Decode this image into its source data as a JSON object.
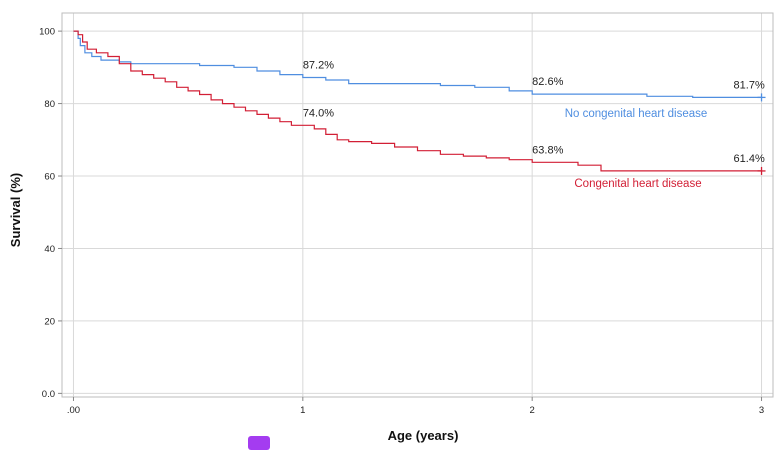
{
  "chart_data": {
    "type": "line",
    "title": "",
    "xlabel": "Age (years)",
    "ylabel": "Survival (%)",
    "xlim": [
      -0.05,
      3.05
    ],
    "ylim": [
      -1,
      105
    ],
    "x_ticks": [
      {
        "value": 0,
        "label": ".00"
      },
      {
        "value": 1,
        "label": "1"
      },
      {
        "value": 2,
        "label": "2"
      },
      {
        "value": 3,
        "label": "3"
      }
    ],
    "y_ticks": [
      {
        "value": 0,
        "label": "0.0"
      },
      {
        "value": 20,
        "label": "20"
      },
      {
        "value": 40,
        "label": "40"
      },
      {
        "value": 60,
        "label": "60"
      },
      {
        "value": 80,
        "label": "80"
      },
      {
        "value": 100,
        "label": "100"
      }
    ],
    "grid": true,
    "series": [
      {
        "name": "No congenital heart disease",
        "color": "#4f8ee0",
        "points": [
          [
            0,
            100
          ],
          [
            0.02,
            98
          ],
          [
            0.03,
            96
          ],
          [
            0.05,
            94
          ],
          [
            0.08,
            93
          ],
          [
            0.12,
            92
          ],
          [
            0.2,
            91.5
          ],
          [
            0.25,
            91
          ],
          [
            0.4,
            91
          ],
          [
            0.55,
            90.5
          ],
          [
            0.7,
            90
          ],
          [
            0.8,
            89
          ],
          [
            0.9,
            88
          ],
          [
            1.0,
            87.2
          ],
          [
            1.1,
            86.5
          ],
          [
            1.2,
            85.5
          ],
          [
            1.4,
            85.5
          ],
          [
            1.6,
            85
          ],
          [
            1.75,
            84.5
          ],
          [
            1.9,
            83.5
          ],
          [
            2.0,
            82.6
          ],
          [
            2.3,
            82.6
          ],
          [
            2.5,
            82
          ],
          [
            2.7,
            81.7
          ],
          [
            3.0,
            81.7
          ]
        ],
        "annotations": [
          {
            "x": 1,
            "y": 87.2,
            "text": "87.2%"
          },
          {
            "x": 2,
            "y": 82.6,
            "text": "82.6%"
          },
          {
            "x": 3,
            "y": 81.7,
            "text": "81.7%"
          }
        ]
      },
      {
        "name": "Congenital heart disease",
        "color": "#d21f35",
        "points": [
          [
            0,
            100
          ],
          [
            0.02,
            99
          ],
          [
            0.04,
            97
          ],
          [
            0.06,
            95
          ],
          [
            0.1,
            94
          ],
          [
            0.15,
            93
          ],
          [
            0.2,
            91
          ],
          [
            0.25,
            89
          ],
          [
            0.3,
            88
          ],
          [
            0.35,
            87
          ],
          [
            0.4,
            86
          ],
          [
            0.45,
            84.5
          ],
          [
            0.5,
            83.5
          ],
          [
            0.55,
            82.5
          ],
          [
            0.6,
            81
          ],
          [
            0.65,
            80
          ],
          [
            0.7,
            79
          ],
          [
            0.75,
            78
          ],
          [
            0.8,
            77
          ],
          [
            0.85,
            76
          ],
          [
            0.9,
            75
          ],
          [
            0.95,
            74
          ],
          [
            1.0,
            74
          ],
          [
            1.05,
            73
          ],
          [
            1.1,
            71.5
          ],
          [
            1.15,
            70
          ],
          [
            1.2,
            69.5
          ],
          [
            1.3,
            69
          ],
          [
            1.4,
            68
          ],
          [
            1.5,
            67
          ],
          [
            1.6,
            66
          ],
          [
            1.7,
            65.5
          ],
          [
            1.8,
            65
          ],
          [
            1.9,
            64.5
          ],
          [
            2.0,
            63.8
          ],
          [
            2.1,
            63.8
          ],
          [
            2.2,
            63
          ],
          [
            2.3,
            61.4
          ],
          [
            3.0,
            61.4
          ]
        ],
        "annotations": [
          {
            "x": 1,
            "y": 74.0,
            "text": "74.0%"
          },
          {
            "x": 2,
            "y": 63.8,
            "text": "63.8%"
          },
          {
            "x": 3,
            "y": 61.4,
            "text": "61.4%"
          }
        ]
      }
    ]
  }
}
